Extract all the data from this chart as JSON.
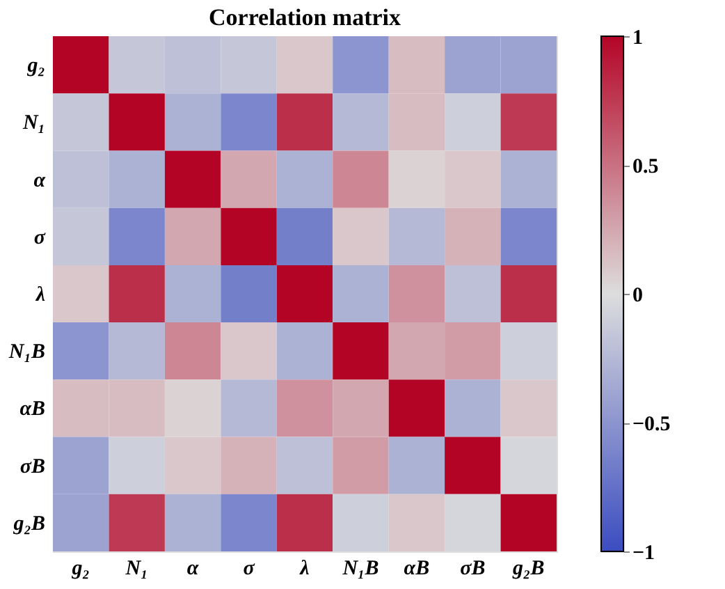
{
  "chart_data": {
    "type": "heatmap",
    "title": "Correlation matrix",
    "categories": [
      "g₂",
      "N₁",
      "α",
      "σ",
      "λ",
      "N₁B",
      "αB",
      "σB",
      "g₂B"
    ],
    "y_categories": [
      "g₂",
      "N₁",
      "α",
      "σ",
      "λ",
      "N₁B",
      "αB",
      "σB",
      "g₂B"
    ],
    "cells": [
      [
        1,
        -0.15,
        -0.2,
        -0.15,
        0.1,
        -0.5,
        0.15,
        -0.4,
        -0.4
      ],
      [
        -0.15,
        1,
        -0.3,
        -0.6,
        0.8,
        -0.25,
        0.15,
        -0.1,
        0.75
      ],
      [
        -0.2,
        -0.3,
        1,
        0.25,
        -0.3,
        0.4,
        0.05,
        0.1,
        -0.3
      ],
      [
        -0.15,
        -0.6,
        0.25,
        1,
        -0.65,
        0.1,
        -0.25,
        0.2,
        -0.6
      ],
      [
        0.1,
        0.8,
        -0.3,
        -0.65,
        1,
        -0.3,
        0.35,
        -0.2,
        0.8
      ],
      [
        -0.5,
        -0.25,
        0.4,
        0.1,
        -0.3,
        1,
        0.25,
        0.3,
        -0.1
      ],
      [
        0.15,
        0.15,
        0.05,
        -0.25,
        0.35,
        0.25,
        1,
        -0.3,
        0.1
      ],
      [
        -0.4,
        -0.1,
        0.1,
        0.2,
        -0.2,
        0.3,
        -0.3,
        1,
        -0.05
      ],
      [
        -0.4,
        0.75,
        -0.3,
        -0.6,
        0.8,
        -0.1,
        0.1,
        -0.05,
        1
      ]
    ],
    "clim": [
      -1,
      1
    ],
    "cticks": [
      -1,
      -0.5,
      0,
      0.5,
      1
    ]
  }
}
